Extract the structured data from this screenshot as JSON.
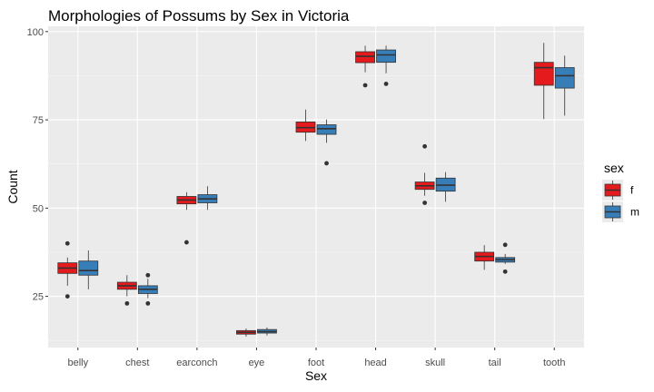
{
  "chart_data": {
    "type": "box",
    "title": "Morphologies of Possums by Sex in Victoria",
    "xlabel": "Sex",
    "ylabel": "Count",
    "ylim": [
      10.5,
      101.5
    ],
    "yticks": [
      25,
      50,
      75,
      100
    ],
    "grid": true,
    "legend_position": "right",
    "legend": {
      "title": "sex"
    },
    "categories": [
      "belly",
      "chest",
      "earconch",
      "eye",
      "foot",
      "head",
      "skull",
      "tail",
      "tooth"
    ],
    "series": [
      {
        "name": "f",
        "color": "#e41a1c",
        "boxes": [
          {
            "category": "belly",
            "whisker_low": 28,
            "q1": 31.5,
            "median": 33,
            "q3": 34.5,
            "whisker_high": 36,
            "outliers": [
              25,
              40
            ]
          },
          {
            "category": "chest",
            "whisker_low": 25,
            "q1": 27,
            "median": 28,
            "q3": 29,
            "whisker_high": 31,
            "outliers": [
              23
            ]
          },
          {
            "category": "earconch",
            "whisker_low": 49.5,
            "q1": 51.2,
            "median": 52.3,
            "q3": 53.3,
            "whisker_high": 54.5,
            "outliers": [
              40.3
            ]
          },
          {
            "category": "eye",
            "whisker_low": 13.6,
            "q1": 14.3,
            "median": 14.8,
            "q3": 15.3,
            "whisker_high": 15.9,
            "outliers": []
          },
          {
            "category": "foot",
            "whisker_low": 69,
            "q1": 71.5,
            "median": 72.8,
            "q3": 74.4,
            "whisker_high": 77.9,
            "outliers": []
          },
          {
            "category": "head",
            "whisker_low": 88.5,
            "q1": 91.2,
            "median": 93,
            "q3": 94.3,
            "whisker_high": 96,
            "outliers": [
              84.8
            ]
          },
          {
            "category": "skull",
            "whisker_low": 53.5,
            "q1": 55.3,
            "median": 56.3,
            "q3": 57.4,
            "whisker_high": 60,
            "outliers": [
              51.5,
              67.5
            ]
          },
          {
            "category": "tail",
            "whisker_low": 32.5,
            "q1": 35,
            "median": 36.3,
            "q3": 37.5,
            "whisker_high": 39.5,
            "outliers": []
          },
          {
            "category": "tooth",
            "whisker_low": 75.2,
            "q1": 84.8,
            "median": 89.8,
            "q3": 91.3,
            "whisker_high": 96.8,
            "outliers": []
          }
        ]
      },
      {
        "name": "m",
        "color": "#377eb8",
        "boxes": [
          {
            "category": "belly",
            "whisker_low": 27,
            "q1": 31,
            "median": 32.3,
            "q3": 35,
            "whisker_high": 38,
            "outliers": []
          },
          {
            "category": "chest",
            "whisker_low": 24.5,
            "q1": 25.8,
            "median": 27,
            "q3": 28,
            "whisker_high": 30,
            "outliers": [
              23,
              31
            ]
          },
          {
            "category": "earconch",
            "whisker_low": 49.5,
            "q1": 51.5,
            "median": 52.6,
            "q3": 53.8,
            "whisker_high": 56.2,
            "outliers": []
          },
          {
            "category": "eye",
            "whisker_low": 13.9,
            "q1": 14.6,
            "median": 15,
            "q3": 15.6,
            "whisker_high": 16.2,
            "outliers": []
          },
          {
            "category": "foot",
            "whisker_low": 68.5,
            "q1": 70.9,
            "median": 72.5,
            "q3": 73.6,
            "whisker_high": 75.1,
            "outliers": [
              62.7
            ]
          },
          {
            "category": "head",
            "whisker_low": 88.2,
            "q1": 91.3,
            "median": 93.4,
            "q3": 94.8,
            "whisker_high": 96,
            "outliers": [
              85.2
            ]
          },
          {
            "category": "skull",
            "whisker_low": 51.8,
            "q1": 54.8,
            "median": 56.5,
            "q3": 58.5,
            "whisker_high": 60.2,
            "outliers": []
          },
          {
            "category": "tail",
            "whisker_low": 34.2,
            "q1": 34.7,
            "median": 35.4,
            "q3": 36,
            "whisker_high": 37,
            "outliers": [
              32,
              39.6
            ]
          },
          {
            "category": "tooth",
            "whisker_low": 76.2,
            "q1": 84,
            "median": 87.5,
            "q3": 89.8,
            "whisker_high": 93.2,
            "outliers": []
          }
        ]
      }
    ]
  }
}
